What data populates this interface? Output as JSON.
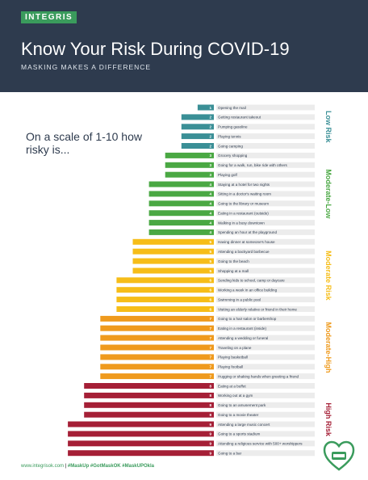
{
  "header": {
    "brand": "INTEGRIS",
    "title": "Know Your Risk During COVID-19",
    "subtitle": "MASKING MAKES A DIFFERENCE"
  },
  "question": "On a scale of 1-10 how risky is...",
  "footer": {
    "url": "www.integrisok.com",
    "separator": " | ",
    "hashtags": "#MaskUp #GotMaskOK #MaskUPOkla"
  },
  "colors": {
    "header_bg": "#2e3b4e",
    "low": "#3a8f96",
    "moderate_low": "#4aa843",
    "moderate": "#f6bd18",
    "moderate_high": "#ef9a1d",
    "high": "#a51f36"
  },
  "chart_data": {
    "type": "bar",
    "orientation": "horizontal",
    "groups": [
      {
        "name": "Low Risk",
        "color": "#3a8f96",
        "from": 1,
        "to": 2
      },
      {
        "name": "Moderate-Low",
        "color": "#4aa843",
        "from": 3,
        "to": 4
      },
      {
        "name": "Moderate Risk",
        "color": "#f6bd18",
        "from": 5,
        "to": 6
      },
      {
        "name": "Moderate-High",
        "color": "#ef9a1d",
        "from": 7,
        "to": 7
      },
      {
        "name": "High Risk",
        "color": "#a51f36",
        "from": 8,
        "to": 9
      }
    ],
    "categories": [
      "Opening the mail",
      "Getting restaurant takeout",
      "Pumping gasoline",
      "Playing tennis",
      "Going camping",
      "Grocery shopping",
      "Going for a walk, run, bike ride with others",
      "Playing golf",
      "Staying at a hotel for two nights",
      "Sitting in a doctor's waiting room",
      "Going to the library or museum",
      "Eating in a restaurant (outside)",
      "Walking in a busy downtown",
      "Spending an hour at the playground",
      "Having dinner at someone's house",
      "Attending a backyard barbecue",
      "Going to the beach",
      "Shopping at a mall",
      "Sending kids to school, camp or daycare",
      "Working a week in an office building",
      "Swimming in a public pool",
      "Visiting an elderly relative or friend in their home",
      "Going to a hair salon or barbershop",
      "Eating in a restaurant (inside)",
      "Attending a wedding or funeral",
      "Traveling on a plane",
      "Playing basketball",
      "Playing football",
      "Hugging or shaking hands when greeting a friend",
      "Eating at a buffet",
      "Working out at a gym",
      "Going to an amusement park",
      "Going to a movie theater",
      "Attending a large music concert",
      "Going to a sports stadium",
      "Attending a religious service with 500+ worshippers",
      "Going to a bar"
    ],
    "values": [
      1,
      2,
      2,
      2,
      2,
      3,
      3,
      3,
      4,
      4,
      4,
      4,
      4,
      4,
      5,
      5,
      5,
      5,
      6,
      6,
      6,
      6,
      7,
      7,
      7,
      7,
      7,
      7,
      7,
      8,
      8,
      8,
      8,
      9,
      9,
      9,
      9
    ],
    "xlim": [
      0,
      10
    ]
  }
}
